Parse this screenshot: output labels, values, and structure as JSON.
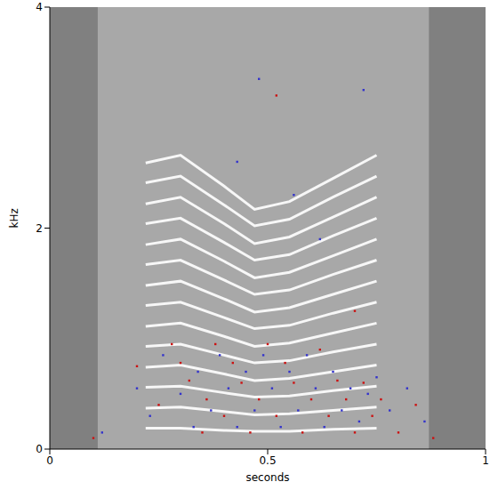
{
  "chart_data": {
    "type": "spectrogram",
    "xlabel": "seconds",
    "ylabel": "kHz",
    "xlim": [
      0,
      1
    ],
    "ylim": [
      0,
      4
    ],
    "xticks": [
      0,
      0.5,
      1
    ],
    "yticks": [
      0,
      2,
      4
    ],
    "grid": false,
    "region": {
      "x": [
        0.11,
        0.87
      ],
      "color": "#a8a8a8"
    },
    "x": [
      0.22,
      0.3,
      0.4,
      0.47,
      0.55,
      0.65,
      0.75
    ],
    "series": [
      {
        "type": "line",
        "color": "#ffffff",
        "values": [
          0.19,
          0.19,
          0.17,
          0.16,
          0.16,
          0.18,
          0.19
        ]
      },
      {
        "type": "line",
        "color": "#ffffff",
        "values": [
          0.37,
          0.38,
          0.34,
          0.31,
          0.32,
          0.35,
          0.38
        ]
      },
      {
        "type": "line",
        "color": "#ffffff",
        "values": [
          0.56,
          0.57,
          0.51,
          0.47,
          0.48,
          0.53,
          0.57
        ]
      },
      {
        "type": "line",
        "color": "#ffffff",
        "values": [
          0.74,
          0.76,
          0.68,
          0.62,
          0.64,
          0.7,
          0.76
        ]
      },
      {
        "type": "line",
        "color": "#ffffff",
        "values": [
          0.93,
          0.95,
          0.85,
          0.78,
          0.8,
          0.88,
          0.95
        ]
      },
      {
        "type": "line",
        "color": "#ffffff",
        "values": [
          1.11,
          1.14,
          1.02,
          0.93,
          0.96,
          1.05,
          1.14
        ]
      },
      {
        "type": "line",
        "color": "#ffffff",
        "values": [
          1.3,
          1.33,
          1.19,
          1.09,
          1.12,
          1.23,
          1.33
        ]
      },
      {
        "type": "line",
        "color": "#ffffff",
        "values": [
          1.48,
          1.52,
          1.36,
          1.24,
          1.28,
          1.4,
          1.52
        ]
      },
      {
        "type": "line",
        "color": "#ffffff",
        "values": [
          1.67,
          1.71,
          1.53,
          1.4,
          1.44,
          1.58,
          1.71
        ]
      },
      {
        "type": "line",
        "color": "#ffffff",
        "values": [
          1.85,
          1.9,
          1.7,
          1.55,
          1.6,
          1.75,
          1.9
        ]
      },
      {
        "type": "line",
        "color": "#ffffff",
        "values": [
          2.04,
          2.09,
          1.87,
          1.71,
          1.76,
          1.93,
          2.09
        ]
      },
      {
        "type": "line",
        "color": "#ffffff",
        "values": [
          2.22,
          2.28,
          2.04,
          1.86,
          1.92,
          2.1,
          2.28
        ]
      },
      {
        "type": "line",
        "color": "#ffffff",
        "values": [
          2.41,
          2.47,
          2.21,
          2.02,
          2.08,
          2.28,
          2.47
        ]
      },
      {
        "type": "line",
        "color": "#ffffff",
        "values": [
          2.59,
          2.66,
          2.38,
          2.17,
          2.24,
          2.45,
          2.66
        ]
      },
      {
        "type": "scatter",
        "color": "#cc1111",
        "marker": "square",
        "x": [
          0.1,
          0.2,
          0.25,
          0.28,
          0.3,
          0.32,
          0.35,
          0.36,
          0.38,
          0.4,
          0.42,
          0.44,
          0.46,
          0.48,
          0.5,
          0.52,
          0.54,
          0.56,
          0.58,
          0.6,
          0.62,
          0.64,
          0.66,
          0.68,
          0.7,
          0.72,
          0.74,
          0.76,
          0.8,
          0.84,
          0.88,
          0.52,
          0.7
        ],
        "y": [
          0.1,
          0.75,
          0.4,
          0.95,
          0.78,
          0.62,
          0.15,
          0.45,
          0.95,
          0.3,
          0.78,
          0.6,
          0.15,
          0.45,
          0.95,
          0.3,
          0.78,
          0.6,
          0.15,
          0.45,
          0.9,
          0.3,
          0.62,
          0.45,
          0.15,
          0.6,
          0.3,
          0.45,
          0.15,
          0.4,
          0.1,
          3.2,
          1.25
        ]
      },
      {
        "type": "scatter",
        "color": "#3333cc",
        "marker": "square",
        "x": [
          0.12,
          0.2,
          0.23,
          0.26,
          0.3,
          0.33,
          0.34,
          0.37,
          0.39,
          0.41,
          0.43,
          0.45,
          0.47,
          0.49,
          0.51,
          0.53,
          0.55,
          0.57,
          0.59,
          0.61,
          0.63,
          0.65,
          0.67,
          0.69,
          0.71,
          0.73,
          0.75,
          0.78,
          0.82,
          0.86,
          0.48,
          0.43,
          0.56,
          0.62,
          0.72
        ],
        "y": [
          0.15,
          0.55,
          0.3,
          0.85,
          0.5,
          0.2,
          0.7,
          0.35,
          0.85,
          0.55,
          0.2,
          0.7,
          0.35,
          0.85,
          0.55,
          0.2,
          0.7,
          0.35,
          0.85,
          0.55,
          0.2,
          0.7,
          0.35,
          0.55,
          0.25,
          0.5,
          0.65,
          0.35,
          0.55,
          0.25,
          3.35,
          2.6,
          2.3,
          1.9,
          3.25
        ]
      }
    ]
  }
}
